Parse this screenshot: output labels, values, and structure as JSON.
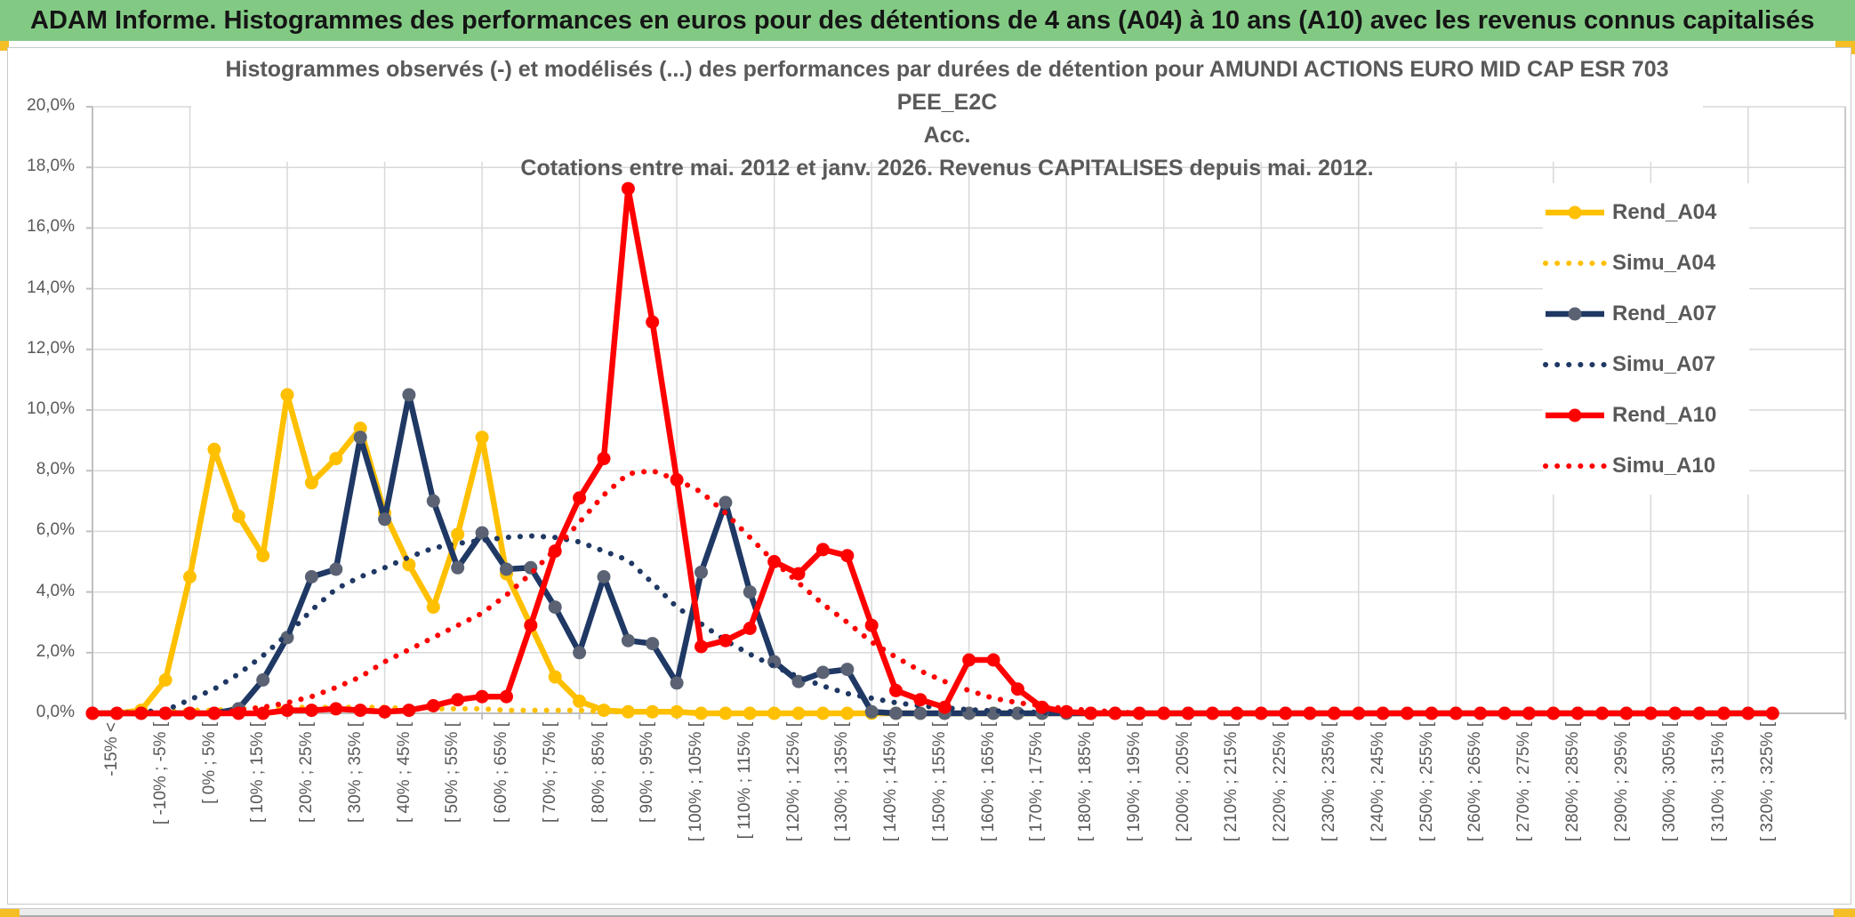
{
  "header": {
    "title": "ADAM Informe. Histogrammes des performances en euros pour des détentions de 4 ans (A04) à 10 ans (A10) avec les revenus connus capitalisés"
  },
  "chart": {
    "title_line1": "Histogrammes observés (-) et modélisés (...) des performances par durées de détention pour AMUNDI ACTIONS EURO MID CAP ESR 703 PEE_E2C",
    "title_line2": "Acc.",
    "title_line3": "Cotations entre mai. 2012 et janv. 2026. Revenus CAPITALISES depuis mai. 2012."
  },
  "colors": {
    "header_green": "#82CA84",
    "accent_gold": "#FFC000",
    "navy": "#1F3864",
    "navy_marker": "#5A6273",
    "red": "#FF0000",
    "gridline": "#D9D9D9",
    "axis": "#BFBFBF",
    "text_gray": "#595959"
  },
  "chart_data": {
    "type": "line",
    "title": "Histogrammes observés (-) et modélisés (...) des performances par durées de détention pour AMUNDI ACTIONS EURO MID CAP ESR 703 PEE_E2C Acc.",
    "subtitle": "Cotations entre mai. 2012 et janv. 2026. Revenus CAPITALISES depuis mai. 2012.",
    "xlabel": "",
    "ylabel": "",
    "ylim": [
      0,
      20
    ],
    "y_tick_step_pct": 2,
    "y_tick_labels": [
      "20,0%",
      "18,0%",
      "16,0%",
      "14,0%",
      "12,0%",
      "10,0%",
      "8,0%",
      "6,0%",
      "4,0%",
      "2,0%",
      "0,0%"
    ],
    "grid": true,
    "legend_position": "right",
    "bins_total": 70,
    "bin_width_pct": 5,
    "x_tick_labels": [
      "-15% <",
      "[ -10% ; -5% [",
      "[ 0% ; 5% [",
      "[ 10% ; 15% [",
      "[ 20% ; 25% [",
      "[ 30% ; 35% [",
      "[ 40% ; 45% [",
      "[ 50% ; 55% [",
      "[ 60% ; 65% [",
      "[ 70% ; 75% [",
      "[ 80% ; 85% [",
      "[ 90% ; 95% [",
      "[ 100% ; 105% [",
      "[ 110% ; 115% [",
      "[ 120% ; 125% [",
      "[ 130% ; 135% [",
      "[ 140% ; 145% [",
      "[ 150% ; 155% [",
      "[ 160% ; 165% [",
      "[ 170% ; 175% [",
      "[ 180% ; 185% [",
      "[ 190% ; 195% [",
      "[ 200% ; 205% [",
      "[ 210% ; 215% [",
      "[ 220% ; 225% [",
      "[ 230% ; 235% [",
      "[ 240% ; 245% [",
      "[ 250% ; 255% [",
      "[ 260% ; 265% [",
      "[ 270% ; 275% [",
      "[ 280% ; 285% [",
      "[ 290% ; 295% [",
      "[ 300% ; 305% [",
      "[ 310% ; 315% [",
      "[ 320% ; 325% ["
    ],
    "series": [
      {
        "name": "Rend_A04",
        "style": "solid",
        "color": "#FFC000",
        "marker_color": "#FFC000",
        "values": [
          0,
          0,
          0.1,
          1.1,
          4.5,
          8.7,
          6.5,
          5.2,
          10.5,
          7.6,
          8.4,
          9.4,
          6.6,
          4.9,
          3.5,
          5.9,
          9.1,
          4.6,
          2.9,
          1.2,
          0.4,
          0.1,
          0.05,
          0.05,
          0.05
        ]
      },
      {
        "name": "Simu_A04",
        "style": "dotted",
        "color": "#FFC000",
        "values": [
          0,
          0,
          0,
          0.05,
          0.1,
          0.1,
          0.15,
          0.2,
          0.2,
          0.2,
          0.2,
          0.2,
          0.2,
          0.15,
          0.15,
          0.15,
          0.15,
          0.1,
          0.1,
          0.1,
          0.1,
          0.05,
          0.05,
          0.05,
          0.05
        ]
      },
      {
        "name": "Rend_A07",
        "style": "solid",
        "color": "#1F3864",
        "marker_color": "#5A6273",
        "values": [
          0,
          0,
          0,
          0,
          0,
          0,
          0.15,
          1.1,
          2.5,
          4.5,
          4.75,
          9.1,
          6.4,
          10.5,
          7,
          4.8,
          5.95,
          4.75,
          4.8,
          3.5,
          2,
          4.5,
          2.4,
          2.3,
          1,
          4.65,
          6.95,
          4,
          1.7,
          1.05,
          1.35,
          1.45,
          0.05
        ]
      },
      {
        "name": "Simu_A07",
        "style": "dotted",
        "color": "#1F3864",
        "values": [
          0,
          0,
          0.05,
          0.1,
          0.45,
          0.8,
          1.3,
          1.9,
          2.6,
          3.4,
          4.1,
          4.5,
          4.8,
          5.15,
          5.45,
          5.6,
          5.7,
          5.8,
          5.85,
          5.8,
          5.65,
          5.35,
          5.05,
          4.3,
          3.5,
          2.95,
          2.4,
          1.95,
          1.55,
          1.2,
          0.9,
          0.65,
          0.5,
          0.35,
          0.25,
          0.18,
          0.12,
          0.08,
          0.05,
          0.03
        ]
      },
      {
        "name": "Rend_A10",
        "style": "solid",
        "color": "#FF0000",
        "marker_color": "#FF0000",
        "values": [
          0,
          0,
          0,
          0,
          0,
          0,
          0,
          0,
          0.1,
          0.1,
          0.15,
          0.1,
          0.05,
          0.1,
          0.25,
          0.45,
          0.55,
          0.55,
          2.9,
          5.35,
          7.1,
          8.4,
          17.3,
          12.9,
          7.7,
          2.2,
          2.4,
          2.8,
          5,
          4.6,
          5.4,
          5.2,
          2.9,
          0.75,
          0.45,
          0.2,
          1.76,
          1.76,
          0.8,
          0.2,
          0.05
        ]
      },
      {
        "name": "Simu_A10",
        "style": "dotted",
        "color": "#FF0000",
        "values": [
          0,
          0,
          0,
          0,
          0,
          0,
          0.1,
          0.2,
          0.35,
          0.55,
          0.85,
          1.2,
          1.7,
          2.1,
          2.5,
          2.9,
          3.3,
          3.9,
          4.6,
          5.4,
          6.3,
          7.2,
          7.9,
          8,
          7.7,
          7.3,
          6.6,
          5.8,
          5,
          4.3,
          3.6,
          3,
          2.35,
          1.85,
          1.4,
          1.05,
          0.75,
          0.5,
          0.35,
          0.25,
          0.15,
          0.1,
          0.05
        ]
      }
    ]
  }
}
